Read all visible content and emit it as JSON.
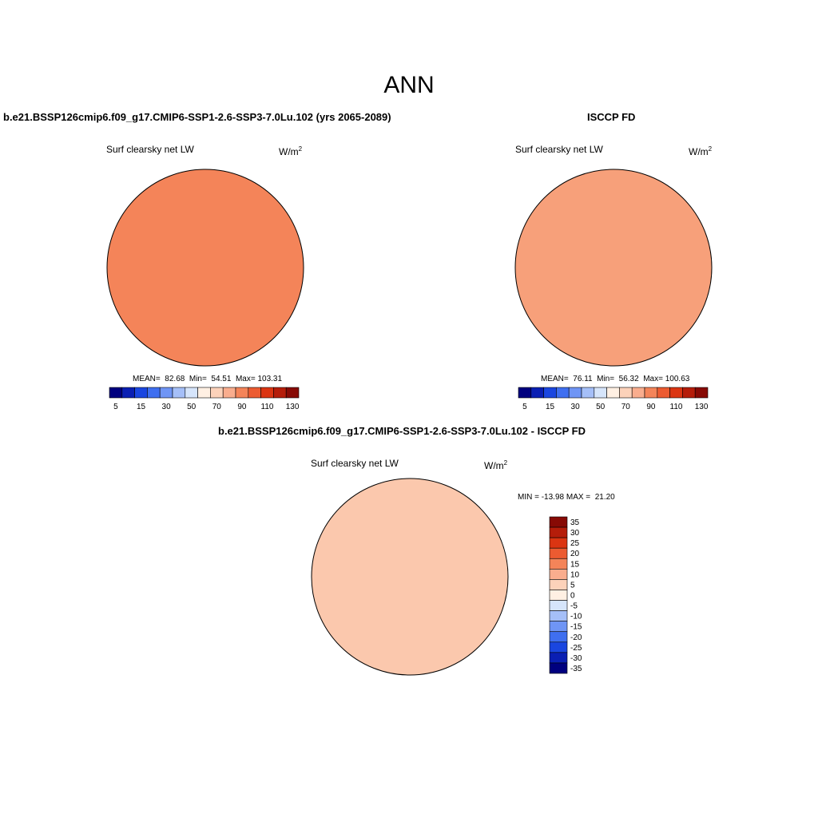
{
  "main_title": "ANN",
  "panels": [
    {
      "title": "b.e21.BSSP126cmip6.f09_g17.CMIP6-SSP1-2.6-SSP3-7.0Lu.102 (yrs 2065-2089)",
      "variable": "Surf clearsky net LW",
      "units_base": "W/m",
      "units_exp": "2",
      "stats": "MEAN=  82.68  Min=  54.51  Max= 103.31",
      "land_fill": "#f7a07a",
      "ocean_fill": "#f48459",
      "center_fill": "#fbc8ad"
    },
    {
      "title": "ISCCP FD",
      "variable": "Surf clearsky net LW",
      "units_base": "W/m",
      "units_exp": "2",
      "stats": "MEAN=  76.11  Min=  56.32  Max= 100.63",
      "land_fill": "#fbbf9f",
      "ocean_fill": "#f7a07a",
      "center_fill": "#fde3d1"
    },
    {
      "title": "b.e21.BSSP126cmip6.f09_g17.CMIP6-SSP1-2.6-SSP3-7.0Lu.102 - ISCCP FD",
      "variable": "Surf clearsky net LW",
      "units_base": "W/m",
      "units_exp": "2",
      "stats": "MIN = -13.98 MAX =  21.20",
      "land_fill": "#fde3d1",
      "ocean_fill": "#fbc8ad",
      "center_fill": "#f48459"
    }
  ],
  "colorbar_h": {
    "colors": [
      "#00007f",
      "#0a1fb3",
      "#1a46e0",
      "#3f6ff0",
      "#6f95f5",
      "#a5bff8",
      "#d6e5fb",
      "#fff0e3",
      "#fcd2ba",
      "#f9ad8e",
      "#f48459",
      "#ec5b31",
      "#db3512",
      "#b51d0a",
      "#870a05"
    ],
    "labels": [
      "5",
      "15",
      "30",
      "50",
      "70",
      "90",
      "110",
      "130"
    ]
  },
  "colorbar_v": {
    "colors": [
      "#870a05",
      "#b51d0a",
      "#db3512",
      "#ec5b31",
      "#f48459",
      "#f9ad8e",
      "#fcd2ba",
      "#fff0e3",
      "#d6e5fb",
      "#a5bff8",
      "#6f95f5",
      "#3f6ff0",
      "#1a46e0",
      "#0a1fb3",
      "#00007f"
    ],
    "labels": [
      "35",
      "30",
      "25",
      "20",
      "15",
      "10",
      "5",
      "0",
      "-5",
      "-10",
      "-15",
      "-20",
      "-25",
      "-30",
      "-35"
    ]
  }
}
